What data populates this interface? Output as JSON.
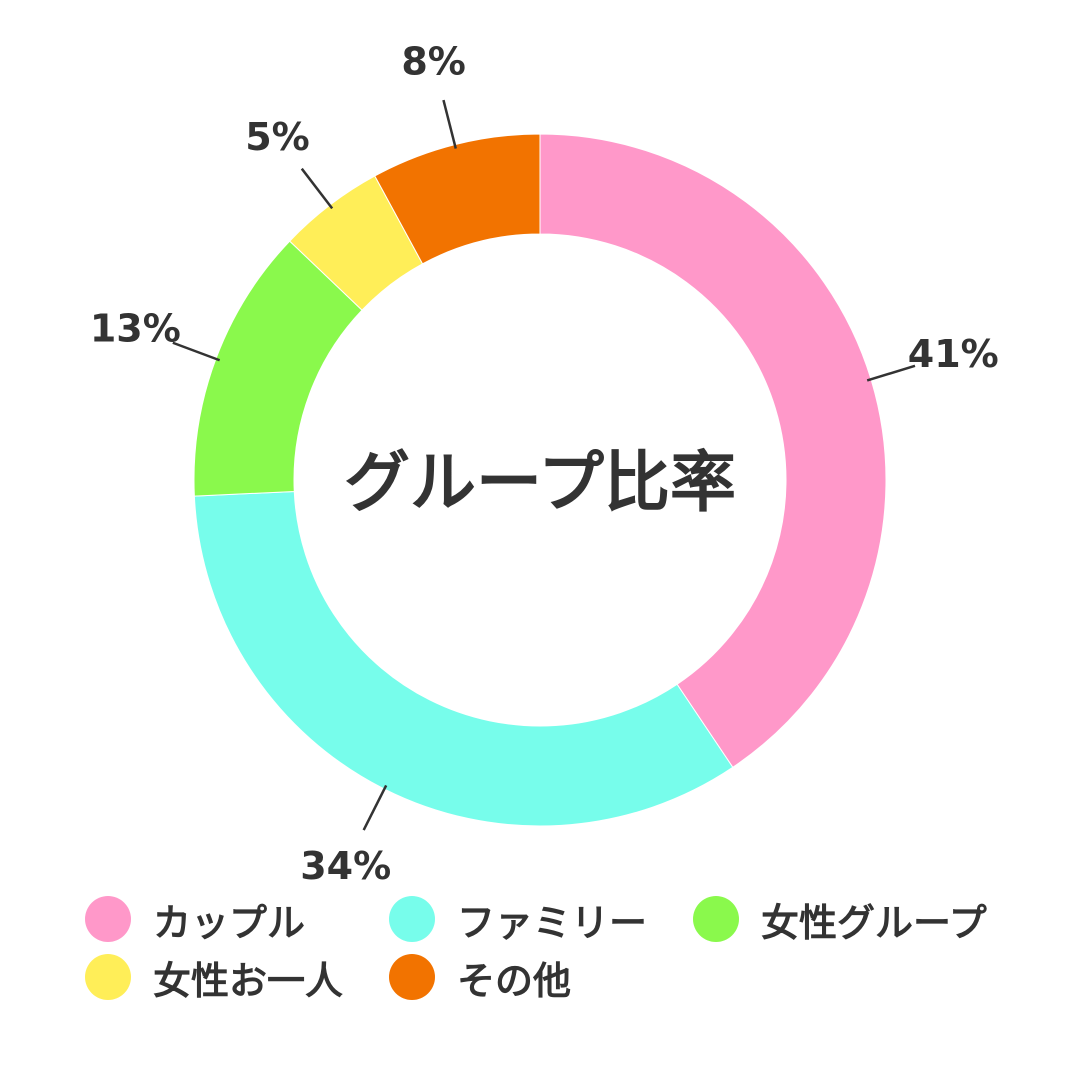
{
  "chart_data": {
    "type": "pie",
    "variant": "donut",
    "title": "グループ比率",
    "categories": [
      "カップル",
      "ファミリー",
      "女性グループ",
      "女性お一人",
      "その他"
    ],
    "values": [
      41,
      34,
      13,
      5,
      8
    ],
    "value_labels": [
      "41%",
      "34%",
      "13%",
      "5%",
      "8%"
    ],
    "colors": [
      "#FF98C9",
      "#77FDEB",
      "#8AF94C",
      "#FFEE58",
      "#F27300"
    ],
    "legend_position": "bottom",
    "start_angle": "12 o'clock, clockwise"
  }
}
